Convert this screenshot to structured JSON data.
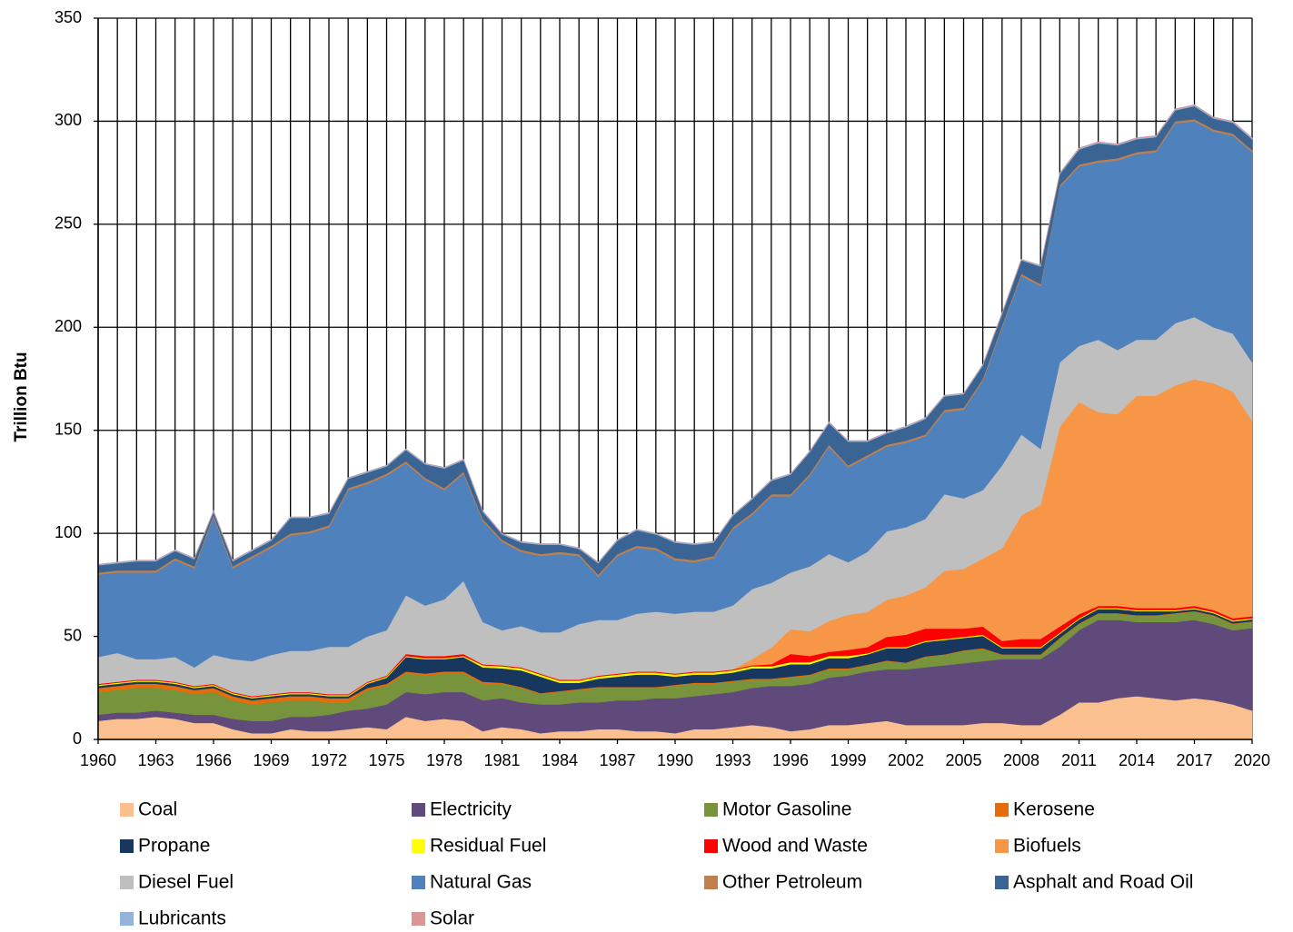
{
  "chart_data": {
    "type": "stacked_area",
    "y_label": "Trillion Btu",
    "x": [
      1960,
      1961,
      1962,
      1963,
      1964,
      1965,
      1966,
      1967,
      1968,
      1969,
      1970,
      1971,
      1972,
      1973,
      1974,
      1975,
      1976,
      1977,
      1978,
      1979,
      1980,
      1981,
      1982,
      1983,
      1984,
      1985,
      1986,
      1987,
      1988,
      1989,
      1990,
      1991,
      1992,
      1993,
      1994,
      1995,
      1996,
      1997,
      1998,
      1999,
      2000,
      2001,
      2002,
      2003,
      2004,
      2005,
      2006,
      2007,
      2008,
      2009,
      2010,
      2011,
      2012,
      2013,
      2014,
      2015,
      2016,
      2017,
      2018,
      2019,
      2020
    ],
    "xlim": [
      1960,
      2020
    ],
    "xticks": [
      1960,
      1963,
      1966,
      1969,
      1972,
      1975,
      1978,
      1981,
      1984,
      1987,
      1990,
      1993,
      1996,
      1999,
      2002,
      2005,
      2008,
      2011,
      2014,
      2017,
      2020
    ],
    "ylim": [
      0,
      350
    ],
    "yticks": [
      0,
      50,
      100,
      150,
      200,
      250,
      300,
      350
    ],
    "grid": true,
    "legend": "bottom",
    "series": [
      {
        "name": "Coal",
        "color": "#fac090",
        "values": [
          9,
          10,
          10,
          11,
          10,
          8,
          8,
          5,
          3,
          3,
          5,
          4,
          4,
          5,
          6,
          5,
          11,
          9,
          10,
          9,
          4,
          6,
          5,
          3,
          4,
          4,
          5,
          5,
          4,
          4,
          3,
          5,
          5,
          6,
          7,
          6,
          4,
          5,
          7,
          7,
          8,
          9,
          7,
          7,
          7,
          7,
          8,
          8,
          7,
          7,
          12,
          18,
          18,
          20,
          21,
          20,
          19,
          20,
          19,
          17,
          14
        ]
      },
      {
        "name": "Electricity",
        "color": "#604a7b",
        "values": [
          3,
          3,
          3,
          3,
          3,
          4,
          4,
          5,
          6,
          6,
          6,
          7,
          8,
          9,
          9,
          12,
          12,
          13,
          13,
          14,
          15,
          14,
          13,
          14,
          13,
          14,
          13,
          14,
          15,
          16,
          17,
          16,
          17,
          17,
          18,
          20,
          22,
          22,
          23,
          24,
          25,
          25,
          27,
          28,
          29,
          30,
          30,
          31,
          32,
          32,
          33,
          35,
          40,
          38,
          36,
          37,
          38,
          38,
          37,
          36,
          40
        ]
      },
      {
        "name": "Motor Gasoline",
        "color": "#77933c",
        "values": [
          11,
          11,
          12,
          11,
          11,
          10,
          11,
          9,
          8,
          9,
          8,
          8,
          6,
          4,
          9,
          9,
          9,
          9,
          9,
          9,
          8,
          7,
          7,
          5,
          6,
          6,
          7,
          6,
          6,
          5,
          6,
          6,
          5,
          5,
          4,
          3,
          4,
          4,
          4,
          3,
          3,
          4,
          3,
          5,
          5,
          6,
          6,
          2,
          2,
          2,
          4,
          3,
          3,
          3,
          3,
          3,
          4,
          4,
          4,
          3,
          3
        ]
      },
      {
        "name": "Kerosene",
        "color": "#e46c0a",
        "values": [
          2,
          2,
          2,
          2,
          2,
          2,
          2,
          2,
          2,
          2,
          2,
          2,
          2,
          2,
          1,
          1,
          1,
          1,
          1,
          1,
          1,
          0.5,
          0.5,
          0.5,
          0.5,
          0.5,
          0.5,
          0.5,
          0.5,
          0.5,
          0.5,
          0.5,
          0.5,
          0.5,
          0.5,
          0.5,
          0.5,
          0.5,
          0.5,
          0.5,
          0.3,
          0.3,
          0.3,
          0.3,
          0.3,
          0.3,
          0.3,
          0.3,
          0.3,
          0.3,
          0.3,
          0.3,
          0.3,
          0.3,
          0.3,
          0.3,
          0.3,
          0.3,
          0.3,
          0.3,
          0.3
        ]
      },
      {
        "name": "Propane",
        "color": "#17375e",
        "values": [
          1,
          1,
          1,
          1,
          1,
          1,
          1,
          1,
          1,
          1,
          1,
          1,
          1,
          1,
          2,
          3,
          7,
          7,
          6,
          7,
          7,
          7,
          8,
          8,
          4,
          3,
          4,
          5,
          6,
          6,
          4,
          4,
          4,
          4,
          5,
          5,
          6,
          5,
          5,
          5,
          5,
          6,
          7,
          7,
          7,
          6,
          6,
          3,
          3,
          3,
          2,
          2,
          2,
          2,
          2,
          2,
          1,
          1,
          1,
          1,
          1
        ]
      },
      {
        "name": "Residual Fuel",
        "color": "#ffff00",
        "values": [
          0.5,
          0.5,
          0.5,
          0.5,
          0.5,
          0.5,
          0.5,
          0.5,
          0.5,
          0.5,
          0.5,
          0.5,
          0.5,
          0.5,
          0.5,
          0.5,
          0.5,
          0.5,
          0.5,
          0.5,
          1,
          1,
          1,
          1,
          1,
          1,
          1,
          1,
          1,
          1,
          1,
          1,
          1,
          1,
          1,
          1,
          1,
          1,
          1,
          1,
          0.5,
          0.5,
          0.5,
          0.5,
          0.5,
          0.5,
          0.5,
          0.5,
          0.5,
          0.5,
          0.5,
          0.5,
          0.5,
          0.5,
          0.5,
          0.5,
          0.5,
          0.5,
          0.5,
          0.5,
          0.5
        ]
      },
      {
        "name": "Wood and Waste",
        "color": "#ff0000",
        "values": [
          0.5,
          0.5,
          0.5,
          0.5,
          0.5,
          0.5,
          0.5,
          0.5,
          0.5,
          0.5,
          0.5,
          0.5,
          0.5,
          0.5,
          0.5,
          0.5,
          1,
          1,
          1,
          1,
          0.5,
          0.5,
          0.5,
          0.5,
          0.5,
          0.5,
          0.5,
          0.5,
          0.5,
          0.5,
          0.5,
          0.5,
          0.5,
          0.5,
          0.5,
          1,
          4,
          3,
          2,
          3,
          3,
          5,
          6,
          6,
          5,
          4,
          4,
          3,
          4,
          4,
          3,
          2,
          1,
          1,
          1,
          1,
          1,
          1,
          1,
          1,
          1
        ]
      },
      {
        "name": "Biofuels",
        "color": "#f79646",
        "values": [
          0,
          0,
          0,
          0,
          0,
          0,
          0,
          0,
          0,
          0,
          0,
          0,
          0,
          0,
          0,
          0,
          0,
          0,
          0,
          0,
          0,
          0,
          0,
          0,
          0,
          0,
          0,
          0,
          0,
          0,
          0,
          0,
          0,
          0,
          3,
          8,
          12,
          12,
          15,
          17,
          17,
          18,
          19,
          20,
          28,
          29,
          33,
          45,
          60,
          65,
          97,
          103,
          94,
          93,
          103,
          103,
          108,
          110,
          110,
          110,
          95
        ]
      },
      {
        "name": "Diesel Fuel",
        "color": "#bfbfbf",
        "values": [
          13,
          14,
          10,
          10,
          12,
          9,
          14,
          16,
          17,
          19,
          20,
          20,
          23,
          23,
          22,
          22,
          28.5,
          24.5,
          27.5,
          35.5,
          20.5,
          17,
          20,
          20,
          23,
          27,
          27,
          26,
          28,
          29,
          29,
          29,
          29,
          31,
          34,
          31.5,
          27.5,
          31.5,
          32.5,
          25.5,
          29.2,
          33.2,
          33.2,
          33.2,
          37.2,
          34.2,
          33.2,
          40.2,
          39.2,
          27.2,
          31.2,
          27.2,
          35.2,
          31.2,
          27.2,
          27.2,
          30.2,
          30.2,
          27.2,
          28.2,
          28.2
        ]
      },
      {
        "name": "Natural Gas",
        "color": "#4f81bd",
        "values": [
          40,
          39,
          42,
          42,
          47,
          48,
          67,
          44,
          50,
          52,
          56,
          57,
          58,
          76,
          74,
          75,
          64,
          61,
          53,
          52,
          49,
          43,
          36,
          37,
          38,
          33,
          21,
          31,
          32,
          30,
          26,
          24,
          26,
          37,
          36,
          42,
          37,
          44,
          52,
          46,
          46,
          41,
          41,
          40,
          40,
          43,
          53,
          67,
          77,
          79,
          85,
          87,
          86,
          92,
          90,
          91,
          97,
          95,
          95,
          96,
          102
        ]
      },
      {
        "name": "Other Petroleum",
        "color": "#c0804d",
        "values": [
          1,
          1,
          1,
          1,
          1,
          1,
          1,
          1,
          1,
          1,
          1,
          1,
          1,
          1,
          1,
          1,
          1,
          1,
          1,
          1,
          1,
          1,
          1,
          1,
          1,
          1,
          1,
          1,
          1,
          1,
          1,
          1,
          1,
          1,
          1,
          1,
          1,
          1,
          1,
          1,
          1,
          1,
          1,
          1,
          1,
          1,
          1,
          1,
          1,
          1,
          1,
          1,
          1,
          1,
          1,
          1,
          1,
          1,
          1,
          1,
          1
        ]
      },
      {
        "name": "Asphalt and Road Oil",
        "color": "#3a6494",
        "values": [
          3.5,
          3.5,
          4.5,
          4.5,
          3.5,
          3.5,
          1.5,
          2.5,
          2.5,
          2.5,
          7.5,
          6.5,
          5.5,
          4.5,
          4.5,
          3.5,
          5.5,
          6.5,
          9.5,
          5.5,
          3.5,
          2.5,
          3.5,
          4.5,
          3.5,
          2.5,
          5.5,
          6.5,
          7.5,
          6.5,
          7.5,
          7.5,
          6.5,
          5.5,
          6.5,
          6.5,
          9.5,
          10.5,
          10.5,
          11.5,
          6.5,
          5.5,
          6.5,
          7.5,
          6.5,
          6.5,
          6.5,
          5.5,
          6.5,
          8.5,
          5.3,
          7.3,
          8.3,
          6.3,
          6.3,
          6.3,
          5.3,
          6.3,
          5.3,
          5.3,
          5.3
        ]
      },
      {
        "name": "Lubricants",
        "color": "#95b3d7",
        "values": [
          0.5,
          0.5,
          0.5,
          0.5,
          0.5,
          0.5,
          0.5,
          0.5,
          0.5,
          0.5,
          0.5,
          0.5,
          0.5,
          0.5,
          0.5,
          0.5,
          0.5,
          0.5,
          0.5,
          0.5,
          0.5,
          0.5,
          0.5,
          0.5,
          0.5,
          0.5,
          0.5,
          0.5,
          0.5,
          0.5,
          0.5,
          0.5,
          0.5,
          0.5,
          0.5,
          0.5,
          0.5,
          0.5,
          0.5,
          0.5,
          0.5,
          0.5,
          0.5,
          0.5,
          0.5,
          0.5,
          0.5,
          0.5,
          0.5,
          0.5,
          0.5,
          0.5,
          0.5,
          0.5,
          0.5,
          0.5,
          0.5,
          0.5,
          0.5,
          0.5,
          0.5
        ]
      },
      {
        "name": "Solar",
        "color": "#d99694",
        "values": [
          0,
          0,
          0,
          0,
          0,
          0,
          0,
          0,
          0,
          0,
          0,
          0,
          0,
          0,
          0,
          0,
          0,
          0,
          0,
          0,
          0,
          0,
          0,
          0,
          0,
          0,
          0,
          0,
          0,
          0,
          0,
          0,
          0,
          0,
          0,
          0,
          0,
          0,
          0,
          0,
          0,
          0,
          0,
          0,
          0,
          0,
          0,
          0,
          0,
          0,
          0.2,
          0.2,
          0.2,
          0.2,
          0.2,
          0.2,
          0.2,
          0.2,
          0.2,
          0.2,
          0.2
        ]
      }
    ]
  }
}
